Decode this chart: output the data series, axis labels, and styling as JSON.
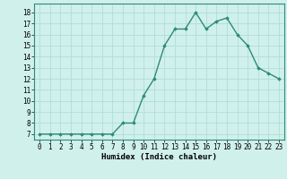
{
  "x": [
    0,
    1,
    2,
    3,
    4,
    5,
    6,
    7,
    8,
    9,
    10,
    11,
    12,
    13,
    14,
    15,
    16,
    17,
    18,
    19,
    20,
    21,
    22,
    23
  ],
  "y": [
    7.0,
    7.0,
    7.0,
    7.0,
    7.0,
    7.0,
    7.0,
    7.0,
    8.0,
    8.0,
    10.5,
    12.0,
    15.0,
    16.5,
    16.5,
    18.0,
    16.5,
    17.2,
    17.5,
    16.0,
    15.0,
    13.0,
    12.5,
    12.0
  ],
  "line_color": "#2e8b72",
  "marker": "D",
  "marker_size": 1.8,
  "bg_color": "#d0f0ec",
  "grid_color": "#b0ddd8",
  "xlabel": "Humidex (Indice chaleur)",
  "xlim": [
    -0.5,
    23.5
  ],
  "ylim": [
    6.5,
    18.8
  ],
  "yticks": [
    7,
    8,
    9,
    10,
    11,
    12,
    13,
    14,
    15,
    16,
    17,
    18
  ],
  "xticks": [
    0,
    1,
    2,
    3,
    4,
    5,
    6,
    7,
    8,
    9,
    10,
    11,
    12,
    13,
    14,
    15,
    16,
    17,
    18,
    19,
    20,
    21,
    22,
    23
  ],
  "xlabel_fontsize": 6.5,
  "tick_fontsize": 5.5,
  "line_width": 1.0
}
